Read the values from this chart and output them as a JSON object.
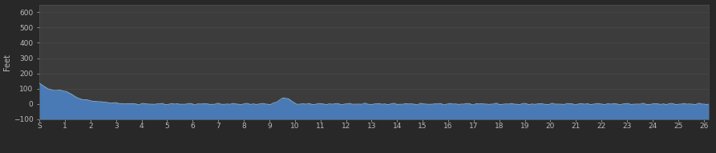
{
  "background_color": "#282828",
  "plot_bg_color": "#3c3c3c",
  "fill_color": "#4a7ab5",
  "fill_edge_color": "#8ab4d8",
  "ylabel": "Feet",
  "ylabel_fontsize": 7,
  "ylabel_color": "#bbbbbb",
  "tick_color": "#bbbbbb",
  "tick_fontsize": 6.5,
  "grid_color": "#505050",
  "ylim": [
    -100,
    650
  ],
  "yticks": [
    -100,
    0,
    100,
    200,
    300,
    400,
    500,
    600
  ],
  "xtick_labels": [
    "S",
    "1",
    "2",
    "3",
    "4",
    "5",
    "6",
    "7",
    "8",
    "9",
    "10",
    "11",
    "12",
    "13",
    "14",
    "15",
    "16",
    "17",
    "18",
    "19",
    "20",
    "21",
    "22",
    "23",
    "24",
    "25",
    "26"
  ],
  "xmin": 0,
  "xmax": 26.2
}
